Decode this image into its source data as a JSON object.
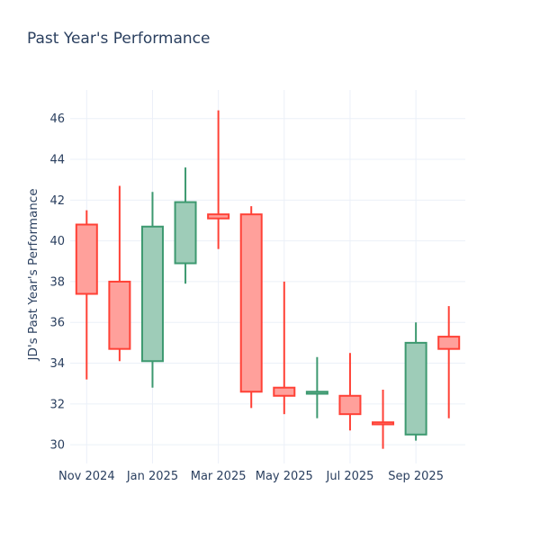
{
  "title": "Past Year's Performance",
  "chart_data": {
    "type": "candlestick",
    "title": "Past Year's Performance",
    "xlabel": "",
    "ylabel": "JD's Past Year's Performance",
    "categories": [
      "Nov 2024",
      "Dec 2024",
      "Jan 2025",
      "Feb 2025",
      "Mar 2025",
      "Apr 2025",
      "May 2025",
      "Jun 2025",
      "Jul 2025",
      "Aug 2025",
      "Sep 2025",
      "Oct 2025"
    ],
    "ohlc": [
      {
        "month": "Nov 2024",
        "open": 40.8,
        "high": 41.5,
        "low": 33.2,
        "close": 37.4
      },
      {
        "month": "Dec 2024",
        "open": 38.0,
        "high": 42.7,
        "low": 34.1,
        "close": 34.7
      },
      {
        "month": "Jan 2025",
        "open": 34.1,
        "high": 42.4,
        "low": 32.8,
        "close": 40.7
      },
      {
        "month": "Feb 2025",
        "open": 38.9,
        "high": 43.6,
        "low": 37.9,
        "close": 41.9
      },
      {
        "month": "Mar 2025",
        "open": 41.3,
        "high": 46.4,
        "low": 39.6,
        "close": 41.1
      },
      {
        "month": "Apr 2025",
        "open": 41.3,
        "high": 41.7,
        "low": 31.8,
        "close": 32.6
      },
      {
        "month": "May 2025",
        "open": 32.8,
        "high": 38.0,
        "low": 31.5,
        "close": 32.4
      },
      {
        "month": "Jun 2025",
        "open": 32.5,
        "high": 34.3,
        "low": 31.3,
        "close": 32.6
      },
      {
        "month": "Jul 2025",
        "open": 32.4,
        "high": 34.5,
        "low": 30.7,
        "close": 31.5
      },
      {
        "month": "Aug 2025",
        "open": 31.1,
        "high": 32.7,
        "low": 29.8,
        "close": 31.0
      },
      {
        "month": "Sep 2025",
        "open": 30.5,
        "high": 36.0,
        "low": 30.2,
        "close": 35.0
      },
      {
        "month": "Oct 2025",
        "open": 35.3,
        "high": 36.8,
        "low": 31.3,
        "close": 34.7
      }
    ],
    "y_ticks": [
      30,
      32,
      34,
      36,
      38,
      40,
      42,
      44,
      46
    ],
    "x_tick_labels": [
      "Nov 2024",
      "Jan 2025",
      "Mar 2025",
      "May 2025",
      "Jul 2025",
      "Sep 2025"
    ],
    "ylim": [
      29.3,
      47.4
    ],
    "grid": true,
    "legend": "none",
    "colors": {
      "increasing_line": "#3D9970",
      "increasing_fill": "#9ECCB8",
      "decreasing_line": "#FF4136",
      "decreasing_fill": "#FFA09B",
      "grid": "#EBF0F8",
      "text": "#2A3F5F",
      "background": "#FFFFFF"
    }
  }
}
